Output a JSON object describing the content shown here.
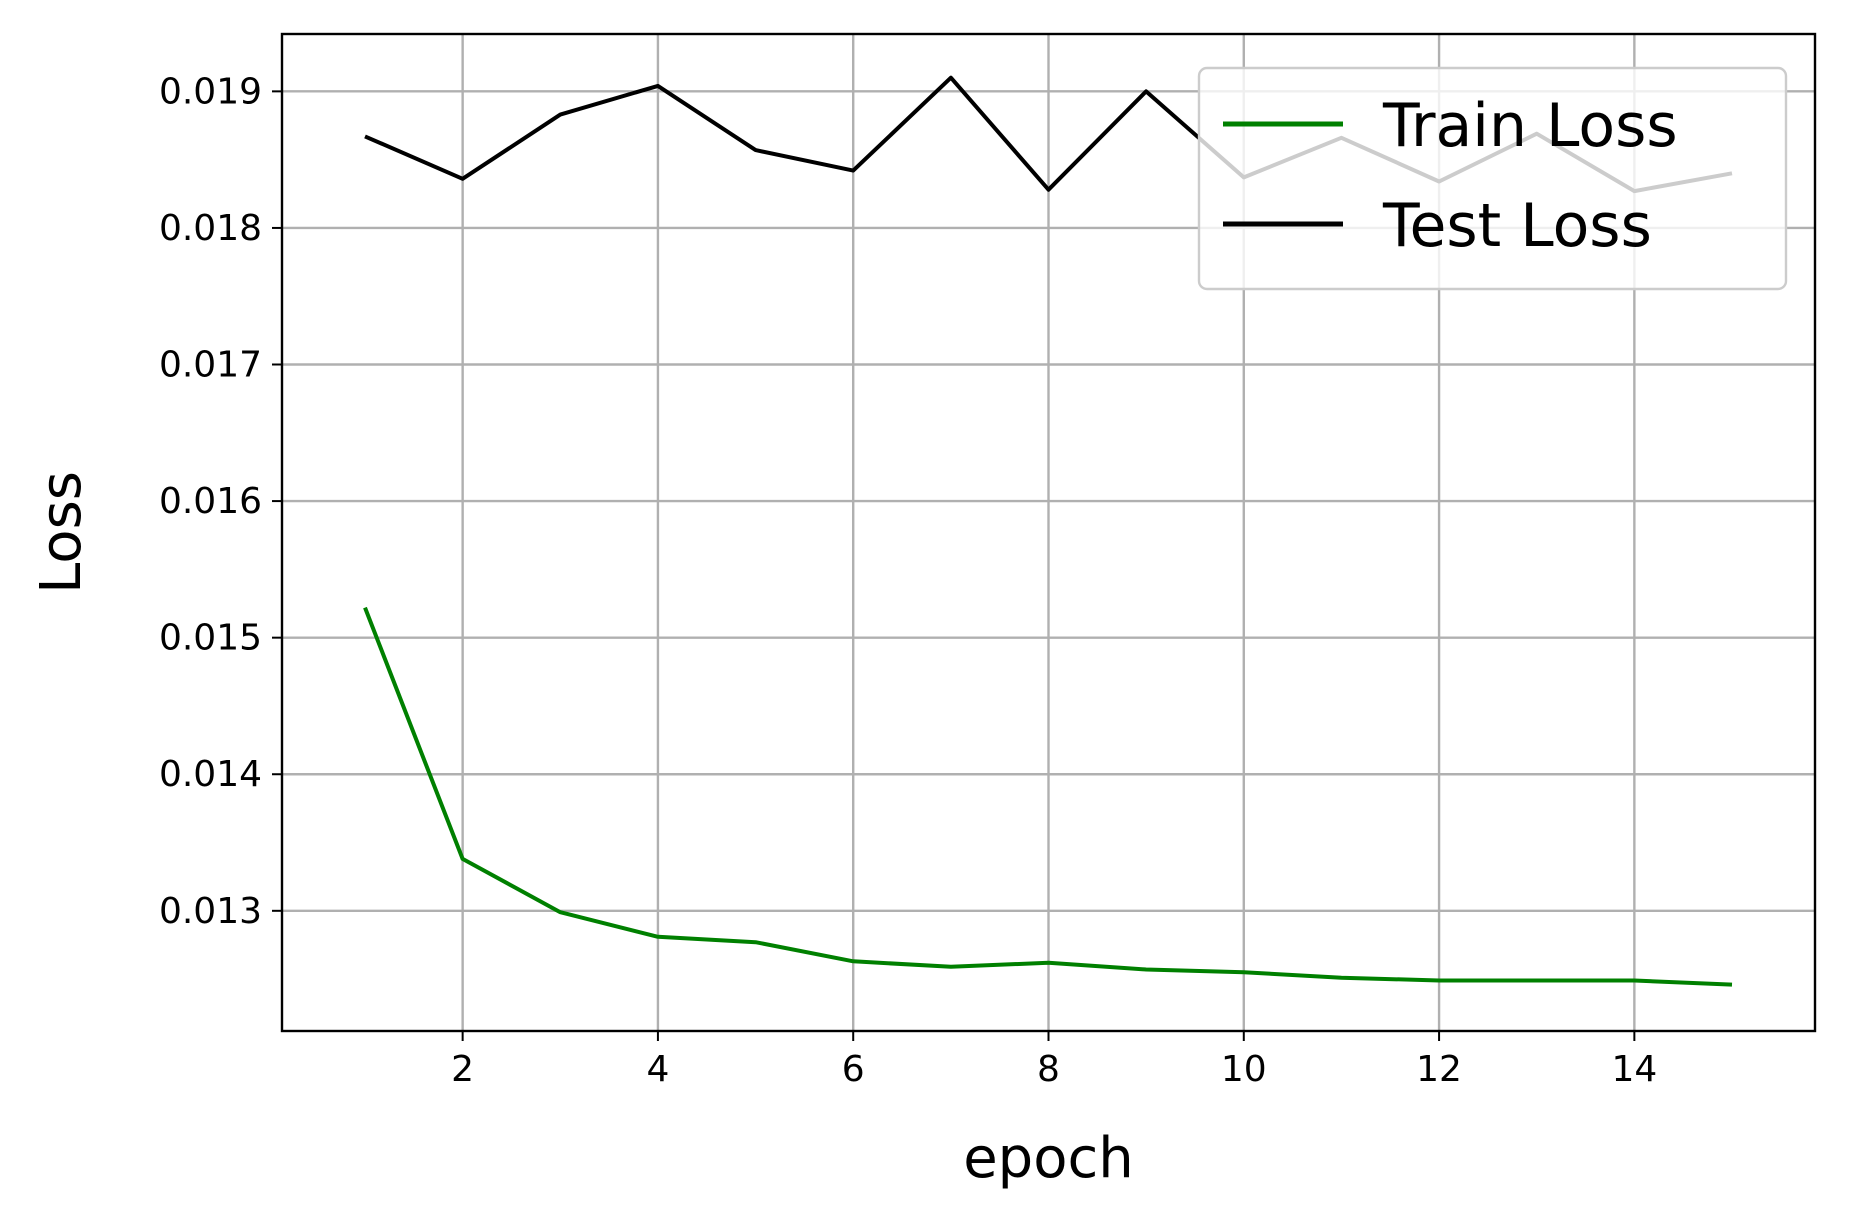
{
  "chart_data": {
    "type": "line",
    "xlabel": "epoch",
    "ylabel": "Loss",
    "x": [
      1,
      2,
      3,
      4,
      5,
      6,
      7,
      8,
      9,
      10,
      11,
      12,
      13,
      14,
      15
    ],
    "xlim": [
      0.15,
      15.85
    ],
    "ylim": [
      0.01212,
      0.01942
    ],
    "xticks": [
      2,
      4,
      6,
      8,
      10,
      12,
      14
    ],
    "xtick_labels": [
      "2",
      "4",
      "6",
      "8",
      "10",
      "12",
      "14"
    ],
    "yticks": [
      0.013,
      0.014,
      0.015,
      0.016,
      0.017,
      0.018,
      0.019
    ],
    "ytick_labels": [
      "0.013",
      "0.014",
      "0.015",
      "0.016",
      "0.017",
      "0.018",
      "0.019"
    ],
    "grid": true,
    "legend_position": "upper right",
    "series": [
      {
        "name": "Train Loss",
        "color": "#008000",
        "values": [
          0.01522,
          0.01338,
          0.01299,
          0.01281,
          0.01277,
          0.01263,
          0.01259,
          0.01262,
          0.01257,
          0.01255,
          0.01251,
          0.01249,
          0.01249,
          0.01249,
          0.01246
        ]
      },
      {
        "name": "Test Loss",
        "color": "#000000",
        "values": [
          0.01867,
          0.01836,
          0.01883,
          0.01904,
          0.01857,
          0.01842,
          0.0191,
          0.01828,
          0.019,
          0.01837,
          0.01866,
          0.01834,
          0.01869,
          0.01827,
          0.0184
        ]
      }
    ]
  }
}
